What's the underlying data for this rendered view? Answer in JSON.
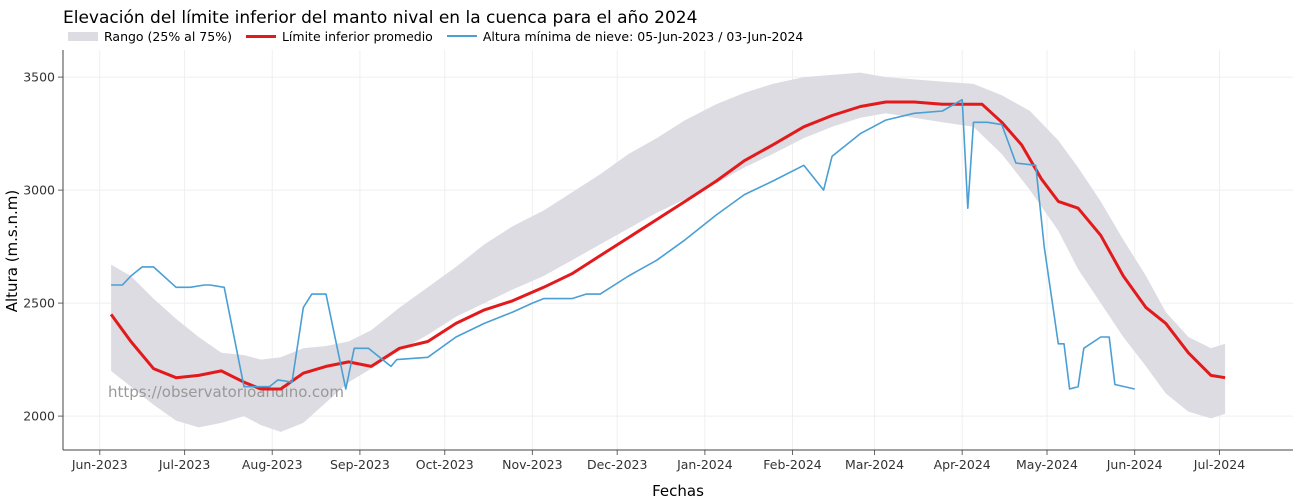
{
  "chart_data": {
    "type": "line",
    "title": "Elevación del límite inferior del manto nival en la cuenca para el año 2024",
    "xlabel": "Fechas",
    "ylabel": "Altura (m.s.n.m)",
    "ylim": [
      1850,
      3620
    ],
    "xlim": [
      "2023-05-19",
      "2024-07-27"
    ],
    "yticks": [
      2000,
      2500,
      3000,
      3500
    ],
    "xticks": [
      {
        "date": "2023-06-01",
        "label": "Jun-2023"
      },
      {
        "date": "2023-07-01",
        "label": "Jul-2023"
      },
      {
        "date": "2023-08-01",
        "label": "Aug-2023"
      },
      {
        "date": "2023-09-01",
        "label": "Sep-2023"
      },
      {
        "date": "2023-10-01",
        "label": "Oct-2023"
      },
      {
        "date": "2023-11-01",
        "label": "Nov-2023"
      },
      {
        "date": "2023-12-01",
        "label": "Dec-2023"
      },
      {
        "date": "2024-01-01",
        "label": "Jan-2024"
      },
      {
        "date": "2024-02-01",
        "label": "Feb-2024"
      },
      {
        "date": "2024-03-01",
        "label": "Mar-2024"
      },
      {
        "date": "2024-04-01",
        "label": "Apr-2024"
      },
      {
        "date": "2024-05-01",
        "label": "May-2024"
      },
      {
        "date": "2024-06-01",
        "label": "Jun-2024"
      },
      {
        "date": "2024-07-01",
        "label": "Jul-2024"
      }
    ],
    "grid": true,
    "legend_position": "top-left",
    "watermark": "https://observatorioandino.com",
    "series": [
      {
        "name": "Rango (25% al 75%)",
        "kind": "band",
        "color": "#dcdce2",
        "x": [
          "2023-06-05",
          "2023-06-12",
          "2023-06-20",
          "2023-06-28",
          "2023-07-06",
          "2023-07-14",
          "2023-07-22",
          "2023-07-28",
          "2023-08-04",
          "2023-08-12",
          "2023-08-20",
          "2023-08-28",
          "2023-09-05",
          "2023-09-15",
          "2023-09-25",
          "2023-10-05",
          "2023-10-15",
          "2023-10-25",
          "2023-11-05",
          "2023-11-15",
          "2023-11-25",
          "2023-12-05",
          "2023-12-15",
          "2023-12-25",
          "2024-01-05",
          "2024-01-15",
          "2024-01-25",
          "2024-02-05",
          "2024-02-15",
          "2024-02-25",
          "2024-03-05",
          "2024-03-15",
          "2024-03-25",
          "2024-04-05",
          "2024-04-15",
          "2024-04-25",
          "2024-05-05",
          "2024-05-12",
          "2024-05-20",
          "2024-05-28",
          "2024-06-05",
          "2024-06-12",
          "2024-06-20",
          "2024-06-28",
          "2024-07-03"
        ],
        "low": [
          2200,
          2130,
          2050,
          1980,
          1950,
          1970,
          2000,
          1960,
          1930,
          1970,
          2060,
          2150,
          2210,
          2290,
          2360,
          2440,
          2500,
          2560,
          2620,
          2690,
          2760,
          2830,
          2900,
          2960,
          3030,
          3100,
          3160,
          3230,
          3280,
          3320,
          3340,
          3320,
          3300,
          3280,
          3160,
          3000,
          2820,
          2650,
          2500,
          2350,
          2220,
          2100,
          2020,
          1990,
          2010
        ],
        "high": [
          2670,
          2620,
          2520,
          2430,
          2350,
          2280,
          2270,
          2250,
          2260,
          2300,
          2310,
          2330,
          2380,
          2480,
          2570,
          2660,
          2760,
          2840,
          2910,
          2990,
          3070,
          3160,
          3230,
          3310,
          3380,
          3430,
          3470,
          3500,
          3510,
          3520,
          3500,
          3490,
          3480,
          3470,
          3420,
          3350,
          3220,
          3100,
          2950,
          2780,
          2620,
          2460,
          2350,
          2300,
          2320
        ]
      },
      {
        "name": "Límite inferior promedio",
        "kind": "line",
        "color": "#e31a1c",
        "x": [
          "2023-06-05",
          "2023-06-12",
          "2023-06-20",
          "2023-06-28",
          "2023-07-06",
          "2023-07-14",
          "2023-07-22",
          "2023-07-28",
          "2023-08-04",
          "2023-08-12",
          "2023-08-20",
          "2023-08-28",
          "2023-09-05",
          "2023-09-15",
          "2023-09-25",
          "2023-10-05",
          "2023-10-15",
          "2023-10-25",
          "2023-11-05",
          "2023-11-15",
          "2023-11-25",
          "2023-12-05",
          "2023-12-15",
          "2023-12-25",
          "2024-01-05",
          "2024-01-15",
          "2024-01-25",
          "2024-02-05",
          "2024-02-15",
          "2024-02-25",
          "2024-03-05",
          "2024-03-15",
          "2024-03-25",
          "2024-04-01",
          "2024-04-08",
          "2024-04-15",
          "2024-04-22",
          "2024-04-29",
          "2024-05-05",
          "2024-05-12",
          "2024-05-20",
          "2024-05-28",
          "2024-06-05",
          "2024-06-12",
          "2024-06-20",
          "2024-06-28",
          "2024-07-03"
        ],
        "y": [
          2450,
          2330,
          2210,
          2170,
          2180,
          2200,
          2150,
          2120,
          2120,
          2190,
          2220,
          2240,
          2220,
          2300,
          2330,
          2410,
          2470,
          2510,
          2570,
          2630,
          2710,
          2790,
          2870,
          2950,
          3040,
          3130,
          3200,
          3280,
          3330,
          3370,
          3390,
          3390,
          3380,
          3380,
          3380,
          3300,
          3200,
          3050,
          2950,
          2920,
          2800,
          2620,
          2480,
          2410,
          2280,
          2180,
          2170
        ]
      },
      {
        "name": "Altura mínima de nieve: 05-Jun-2023 / 03-Jun-2024",
        "kind": "line",
        "color": "#4a9fd4",
        "x": [
          "2023-06-05",
          "2023-06-09",
          "2023-06-12",
          "2023-06-16",
          "2023-06-20",
          "2023-06-28",
          "2023-07-03",
          "2023-07-08",
          "2023-07-10",
          "2023-07-15",
          "2023-07-22",
          "2023-07-31",
          "2023-08-03",
          "2023-08-08",
          "2023-08-12",
          "2023-08-15",
          "2023-08-20",
          "2023-08-27",
          "2023-08-30",
          "2023-09-04",
          "2023-09-12",
          "2023-09-14",
          "2023-09-25",
          "2023-10-05",
          "2023-10-15",
          "2023-10-25",
          "2023-11-01",
          "2023-11-05",
          "2023-11-15",
          "2023-11-20",
          "2023-11-25",
          "2023-12-05",
          "2023-12-15",
          "2023-12-25",
          "2024-01-05",
          "2024-01-15",
          "2024-01-25",
          "2024-02-05",
          "2024-02-12",
          "2024-02-15",
          "2024-02-25",
          "2024-03-05",
          "2024-03-15",
          "2024-03-25",
          "2024-04-01",
          "2024-04-03",
          "2024-04-05",
          "2024-04-10",
          "2024-04-15",
          "2024-04-20",
          "2024-04-27",
          "2024-04-30",
          "2024-05-05",
          "2024-05-07",
          "2024-05-09",
          "2024-05-12",
          "2024-05-14",
          "2024-05-20",
          "2024-05-23",
          "2024-05-25",
          "2024-06-01"
        ],
        "y": [
          2580,
          2580,
          2620,
          2660,
          2660,
          2570,
          2570,
          2580,
          2580,
          2570,
          2130,
          2130,
          2160,
          2150,
          2480,
          2540,
          2540,
          2120,
          2300,
          2300,
          2220,
          2250,
          2260,
          2350,
          2410,
          2460,
          2500,
          2520,
          2520,
          2540,
          2540,
          2620,
          2690,
          2780,
          2890,
          2980,
          3040,
          3110,
          3000,
          3150,
          3250,
          3310,
          3340,
          3350,
          3400,
          2920,
          3300,
          3300,
          3290,
          3120,
          3110,
          2750,
          2320,
          2320,
          2120,
          2130,
          2300,
          2350,
          2350,
          2140,
          2120
        ]
      }
    ]
  }
}
